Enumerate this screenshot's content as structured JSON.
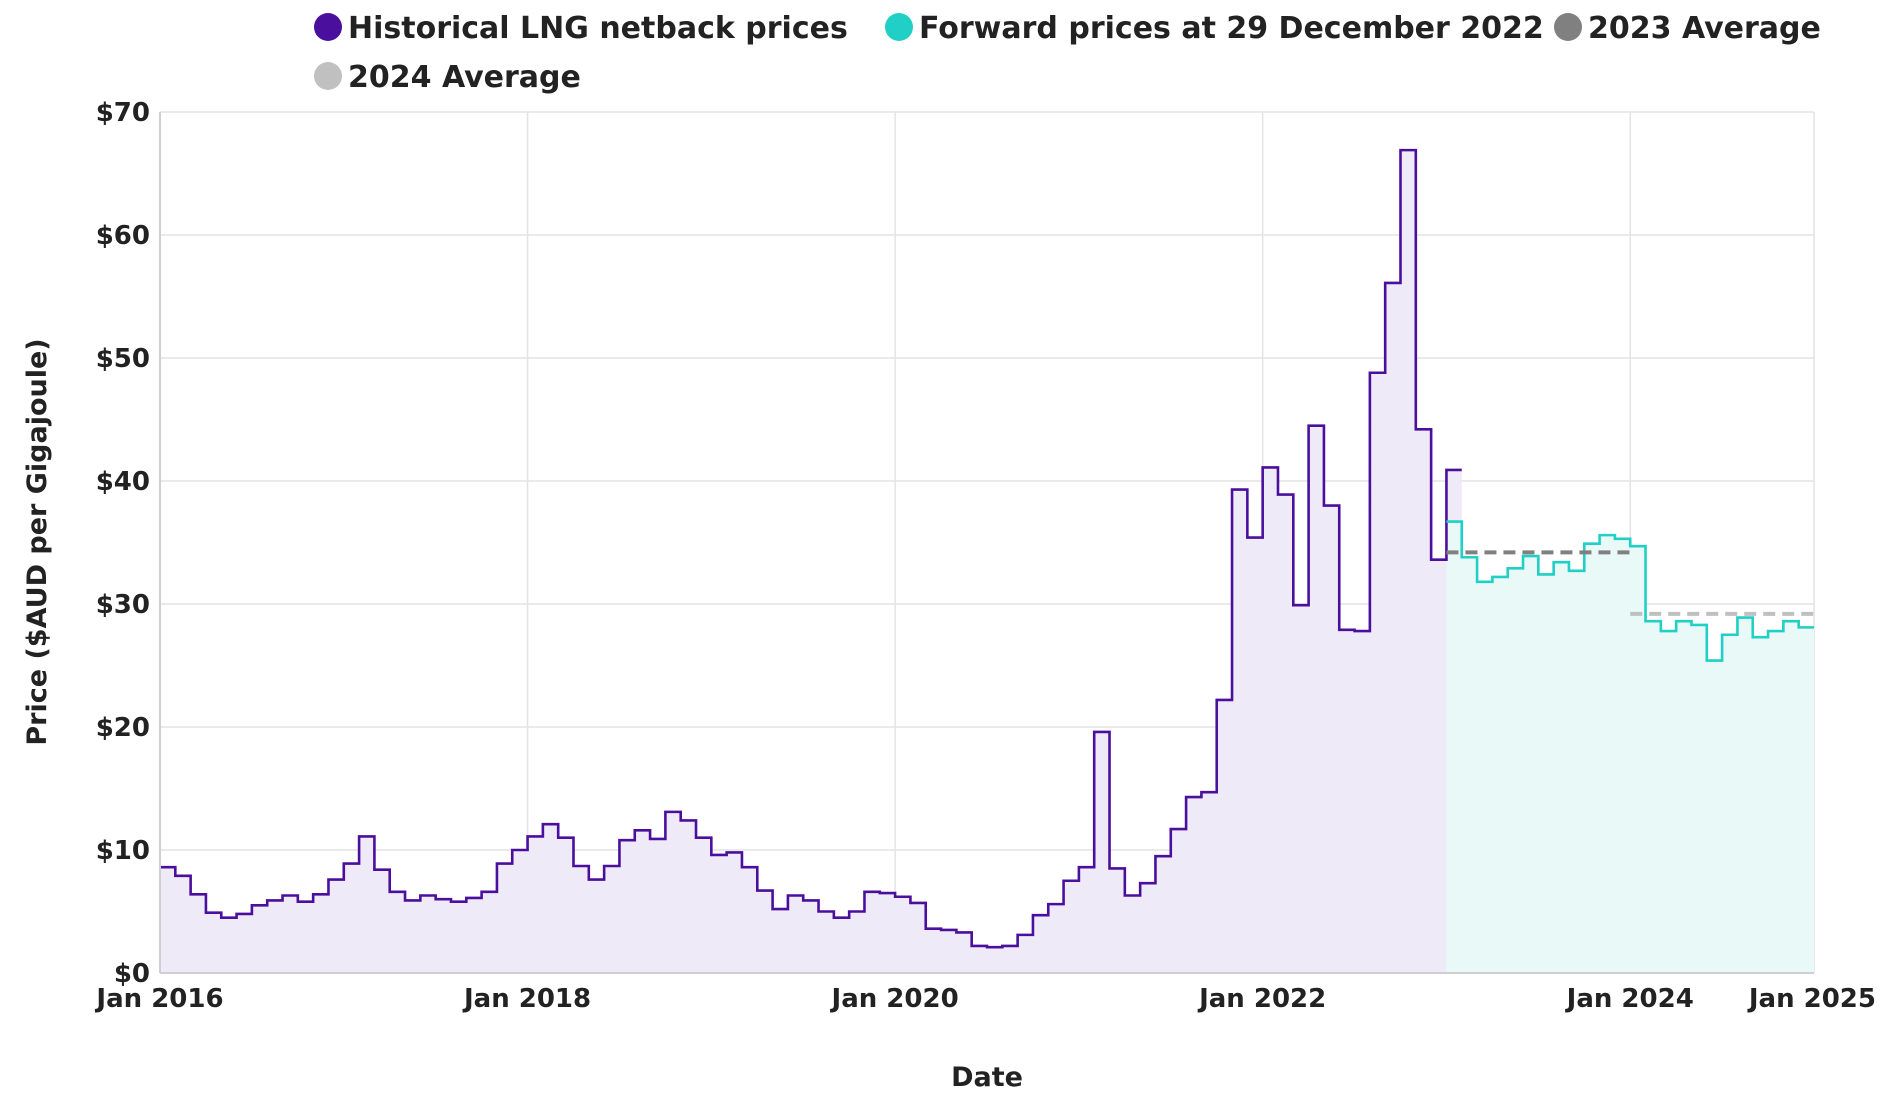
{
  "chart_data": {
    "type": "line",
    "title": "",
    "xlabel": "Date",
    "ylabel": "Price ($AUD per Gigajoule)",
    "ylim": [
      0,
      70
    ],
    "y_ticks": [
      0,
      10,
      20,
      30,
      40,
      50,
      60,
      70
    ],
    "y_tick_labels": [
      "$0",
      "$10",
      "$20",
      "$30",
      "$40",
      "$50",
      "$60",
      "$70"
    ],
    "x_range": [
      "2016-01",
      "2025-01"
    ],
    "x_ticks": [
      {
        "date": "2016-01",
        "label": "Jan 2016"
      },
      {
        "date": "2018-01",
        "label": "Jan 2018"
      },
      {
        "date": "2020-01",
        "label": "Jan 2020"
      },
      {
        "date": "2022-01",
        "label": "Jan 2022"
      },
      {
        "date": "2024-01",
        "label": "Jan 2024"
      },
      {
        "date": "2025-01",
        "label": "Jan 2025"
      }
    ],
    "grid": true,
    "legend_position": "top",
    "legend": [
      {
        "name": "Historical LNG netback prices",
        "color": "#4B0F9E"
      },
      {
        "name": "Forward prices at 29 December 2022",
        "color": "#20CFC6"
      },
      {
        "name": "2023 Average",
        "color": "#808080"
      },
      {
        "name": "2024 Average",
        "color": "#C0C0C0"
      }
    ],
    "series": [
      {
        "name": "Historical LNG netback prices",
        "style": "step-area",
        "color": "#4B0F9E",
        "fill": "#EFEAF7",
        "start": "2016-01",
        "values": [
          8.6,
          7.9,
          6.4,
          4.9,
          4.5,
          4.8,
          5.5,
          5.9,
          6.3,
          5.8,
          6.4,
          7.6,
          8.9,
          11.1,
          8.4,
          6.6,
          5.9,
          6.3,
          6.0,
          5.8,
          6.1,
          6.6,
          8.9,
          10.0,
          11.1,
          12.1,
          11.0,
          8.7,
          7.6,
          8.7,
          10.8,
          11.6,
          10.9,
          13.1,
          12.4,
          11.0,
          9.6,
          9.8,
          8.6,
          6.7,
          5.2,
          6.3,
          5.9,
          5.0,
          4.5,
          5.0,
          6.6,
          6.5,
          6.2,
          5.7,
          3.6,
          3.5,
          3.3,
          2.2,
          2.1,
          2.2,
          3.1,
          4.7,
          5.6,
          7.5,
          8.6,
          19.6,
          8.5,
          6.3,
          7.3,
          9.5,
          11.7,
          14.3,
          14.7,
          22.2,
          39.3,
          35.4,
          41.1,
          38.9,
          29.9,
          44.5,
          38.0,
          27.9,
          27.8,
          48.8,
          56.1,
          66.9,
          44.2,
          33.6,
          40.9
        ]
      },
      {
        "name": "Forward prices at 29 December 2022",
        "style": "step-area",
        "color": "#20CFC6",
        "fill": "#E8F9F8",
        "start": "2023-01",
        "values": [
          36.7,
          33.8,
          31.8,
          32.2,
          32.9,
          33.9,
          32.4,
          33.4,
          32.7,
          34.9,
          35.6,
          35.3,
          34.7,
          28.6,
          27.8,
          28.6,
          28.3,
          25.4,
          27.5,
          28.9,
          27.3,
          27.8,
          28.6,
          28.1
        ]
      },
      {
        "name": "2023 Average",
        "style": "dashed",
        "color": "#808080",
        "from": "2023-01",
        "to": "2024-01",
        "value": 34.2
      },
      {
        "name": "2024 Average",
        "style": "dashed",
        "color": "#C0C0C0",
        "from": "2024-01",
        "to": "2025-01",
        "value": 29.2
      }
    ]
  }
}
